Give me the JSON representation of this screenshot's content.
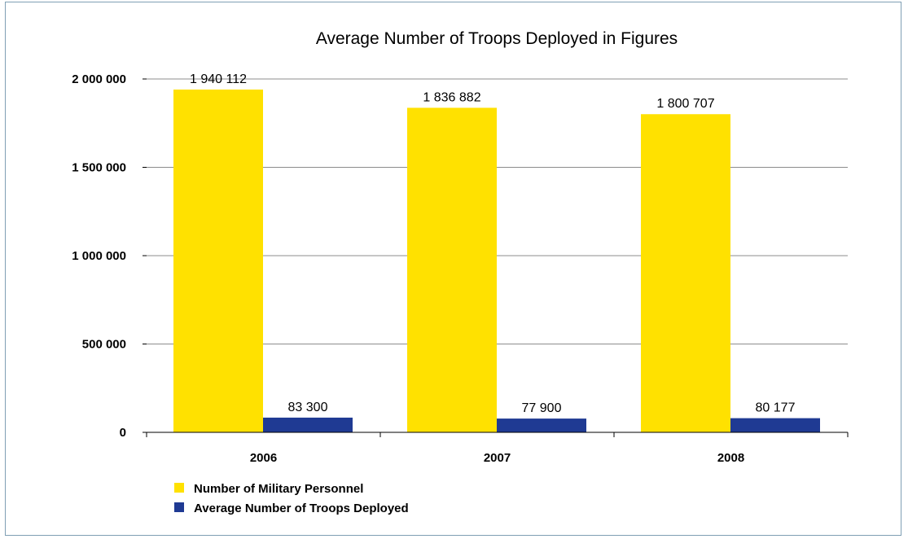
{
  "chart_data": {
    "type": "bar",
    "title": "Average Number of Troops Deployed in Figures",
    "categories": [
      "2006",
      "2007",
      "2008"
    ],
    "series": [
      {
        "name": "Number of Military Personnel",
        "color": "#ffe100",
        "values": [
          1940112,
          1836882,
          1800707
        ],
        "labels": [
          "1 940 112",
          "1 836 882",
          "1 800 707"
        ]
      },
      {
        "name": "Average Number of Troops Deployed",
        "color": "#1f3a93",
        "values": [
          83300,
          77900,
          80177
        ],
        "labels": [
          "83 300",
          "77 900",
          "80 177"
        ]
      }
    ],
    "ylim": [
      0,
      2000000
    ],
    "yticks": [
      0,
      500000,
      1000000,
      1500000,
      2000000
    ],
    "ytick_labels": [
      "0",
      "500 000",
      "1 000 000",
      "1 500 000",
      "2 000 000"
    ],
    "grid": true,
    "legend_position": "bottom-left"
  },
  "colors": {
    "frame_border": "#7f9fb4",
    "gridline": "#8c8c8c"
  }
}
